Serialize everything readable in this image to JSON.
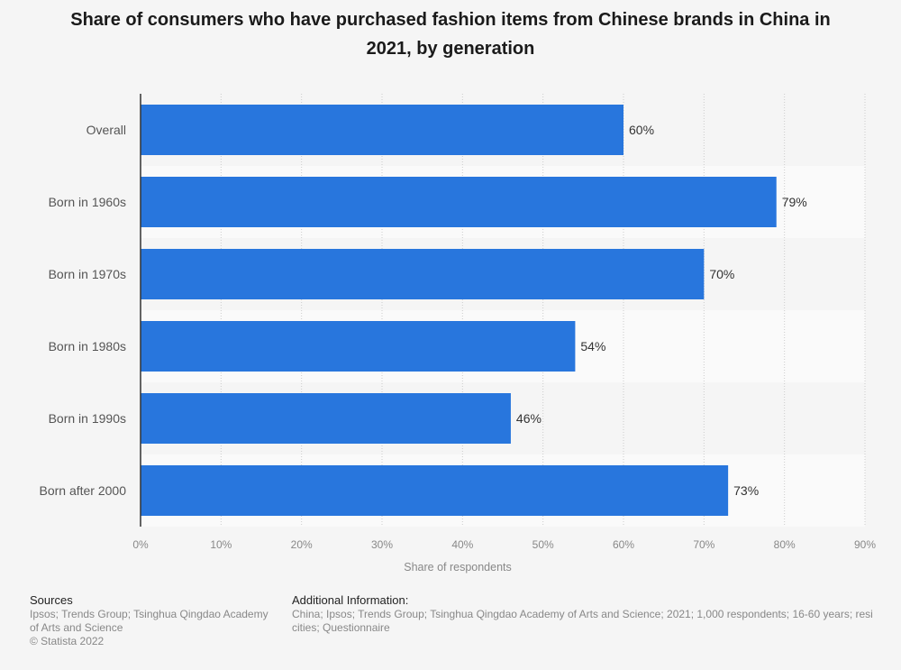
{
  "title": "Share of consumers who have purchased fashion items from Chinese brands in China in 2021, by generation",
  "footer": {
    "sources_heading": "Sources",
    "sources_line1": "Ipsos; Trends Group; Tsinghua Qingdao Academy",
    "sources_line2": "of Arts and Science",
    "copyright": "© Statista 2022",
    "additional_heading": "Additional Information:",
    "additional_line1": "China; Ipsos; Trends Group; Tsinghua Qingdao Academy of Arts and Science; 2021; 1,000 respondents; 16-60 years; resi",
    "additional_line2": "cities; Questionnaire"
  },
  "colors": {
    "bar": "#2876dd",
    "background": "#f5f5f5",
    "band_alt": "#fafafa",
    "grid": "#cccccc",
    "axis": "#333333"
  },
  "chart_data": {
    "type": "bar",
    "orientation": "horizontal",
    "categories": [
      "Overall",
      "Born in 1960s",
      "Born in 1970s",
      "Born in 1980s",
      "Born in 1990s",
      "Born after 2000"
    ],
    "values": [
      60,
      79,
      70,
      54,
      46,
      73
    ],
    "value_labels": [
      "60%",
      "79%",
      "70%",
      "54%",
      "46%",
      "73%"
    ],
    "xlabel": "Share of respondents",
    "ylabel": "",
    "xlim": [
      0,
      90
    ],
    "xticks": [
      0,
      10,
      20,
      30,
      40,
      50,
      60,
      70,
      80,
      90
    ],
    "xtick_labels": [
      "0%",
      "10%",
      "20%",
      "30%",
      "40%",
      "50%",
      "60%",
      "70%",
      "80%",
      "90%"
    ],
    "grid": true,
    "legend": false
  }
}
